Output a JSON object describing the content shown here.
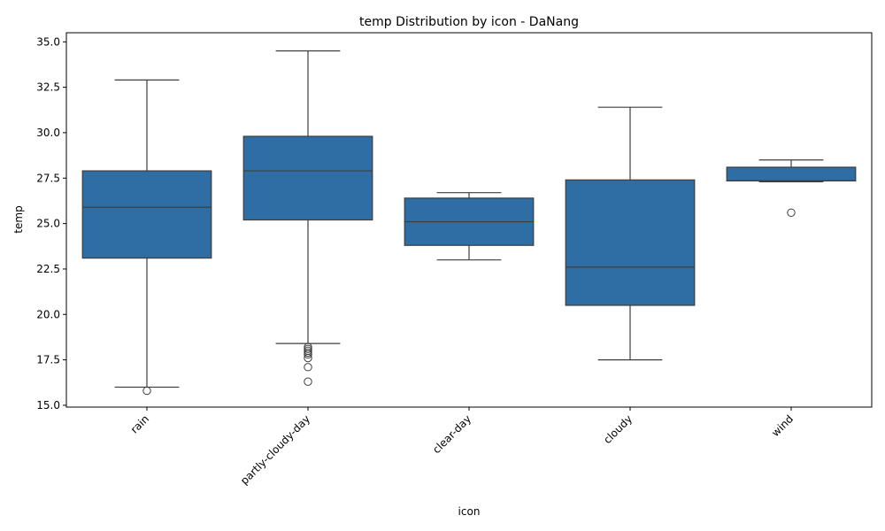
{
  "chart_data": {
    "type": "box",
    "title": "temp Distribution by icon - DaNang",
    "xlabel": "icon",
    "ylabel": "temp",
    "ylim": [
      14.9,
      35.5
    ],
    "yticks": [
      "15.0",
      "17.5",
      "20.0",
      "22.5",
      "25.0",
      "27.5",
      "30.0",
      "32.5",
      "35.0"
    ],
    "grid": false,
    "legend": "none",
    "box_color": "#2f6ea5",
    "line_color": "#3d3d3d",
    "categories": [
      "rain",
      "partly-cloudy-day",
      "clear-day",
      "cloudy",
      "wind"
    ],
    "boxes": [
      {
        "category": "rain",
        "whisker_low": 16.0,
        "q1": 23.1,
        "median": 25.9,
        "q3": 27.9,
        "whisker_high": 32.9,
        "outliers": [
          15.8
        ]
      },
      {
        "category": "partly-cloudy-day",
        "whisker_low": 18.4,
        "q1": 25.2,
        "median": 27.9,
        "q3": 29.8,
        "whisker_high": 34.5,
        "outliers": [
          18.2,
          18.1,
          18.0,
          17.9,
          17.8,
          17.6,
          17.1,
          16.3
        ]
      },
      {
        "category": "clear-day",
        "whisker_low": 23.0,
        "q1": 23.8,
        "median": 25.1,
        "q3": 26.4,
        "whisker_high": 26.7,
        "outliers": []
      },
      {
        "category": "cloudy",
        "whisker_low": 17.5,
        "q1": 20.5,
        "median": 22.6,
        "q3": 27.4,
        "whisker_high": 31.4,
        "outliers": []
      },
      {
        "category": "wind",
        "whisker_low": 27.3,
        "q1": 27.35,
        "median": 27.35,
        "q3": 28.1,
        "whisker_high": 28.5,
        "outliers": [
          25.6
        ]
      }
    ]
  }
}
